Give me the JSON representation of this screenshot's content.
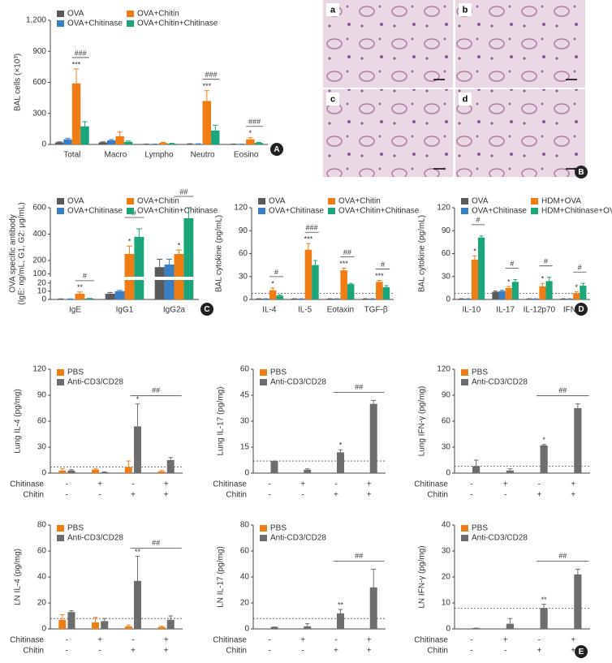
{
  "chart_data": [
    {
      "type": "bar",
      "panel": "A",
      "ylabel": "BAL cells (×10³)",
      "categories": [
        "Total",
        "Macro",
        "Lympho",
        "Neutro",
        "Eosino"
      ],
      "ylim": [
        0,
        1200
      ],
      "yticks": [
        0,
        300,
        600,
        900,
        {
          "value": 1200,
          "label": "1,200"
        }
      ],
      "series": [
        {
          "name": "OVA",
          "color": "#5a5a5a",
          "values": [
            20,
            20,
            3,
            5,
            3
          ],
          "errors": [
            5,
            5,
            1,
            2,
            1
          ]
        },
        {
          "name": "OVA+Chitinase",
          "color": "#3a7fc4",
          "values": [
            50,
            40,
            3,
            5,
            3
          ],
          "errors": [
            10,
            8,
            1,
            2,
            1
          ]
        },
        {
          "name": "OVA+Chitin",
          "color": "#f07d14",
          "values": [
            590,
            80,
            15,
            420,
            50
          ],
          "errors": [
            140,
            40,
            5,
            100,
            15
          ]
        },
        {
          "name": "OVA+Chitin+Chitinase",
          "color": "#1aa57a",
          "values": [
            175,
            25,
            8,
            135,
            15
          ],
          "errors": [
            45,
            8,
            3,
            50,
            5
          ]
        }
      ],
      "annotations": [
        {
          "text": "***",
          "category": 0,
          "series": 2
        },
        {
          "text": "***",
          "category": 3,
          "series": 2
        },
        {
          "text": "*",
          "category": 4,
          "series": 2
        },
        {
          "text": "###",
          "category": 0,
          "from": 2,
          "to": 3
        },
        {
          "text": "###",
          "category": 3,
          "from": 2,
          "to": 3
        },
        {
          "text": "###",
          "category": 4,
          "from": 2,
          "to": 3
        }
      ]
    },
    {
      "type": "bar",
      "panel": "C",
      "ylabel": [
        "OVA specific antibody",
        "(IgE: ng/mL, G1, G2: μg/mL)"
      ],
      "categories": [
        "IgE",
        "IgG1",
        "IgG2a"
      ],
      "ylim": [
        0,
        600
      ],
      "axis_break": [
        20,
        100
      ],
      "yticks": [
        0,
        10,
        20,
        100,
        200,
        400,
        600
      ],
      "series": [
        {
          "name": "OVA",
          "color": "#5a5a5a",
          "values": [
            0.5,
            7,
            150
          ],
          "errors": [
            0.2,
            1.5,
            60
          ]
        },
        {
          "name": "OVA+Chitinase",
          "color": "#3a7fc4",
          "values": [
            0.5,
            10,
            170
          ],
          "errors": [
            0.2,
            1,
            40
          ]
        },
        {
          "name": "OVA+Chitin",
          "color": "#f07d14",
          "values": [
            7,
            250,
            250
          ],
          "errors": [
            2,
            60,
            30
          ]
        },
        {
          "name": "OVA+Chitin+Chitinase",
          "color": "#1aa57a",
          "values": [
            1,
            380,
            520
          ],
          "errors": [
            0.3,
            60,
            80
          ]
        }
      ],
      "annotations": [
        {
          "text": "**",
          "category": 0,
          "series": 2
        },
        {
          "text": "*",
          "category": 1,
          "series": 2
        },
        {
          "text": "*",
          "category": 2,
          "series": 2
        },
        {
          "text": "#",
          "category": 0,
          "from": 2,
          "to": 3
        },
        {
          "text": "#",
          "category": 1,
          "from": 2,
          "to": 3
        },
        {
          "text": "##",
          "category": 2,
          "from": 2,
          "to": 3
        }
      ]
    },
    {
      "type": "bar",
      "ylabel": "BAL cytokine (pg/mL)",
      "categories": [
        "IL-4",
        "IL-5",
        "Eotaxin",
        "TGF-β"
      ],
      "ylim": [
        0,
        120
      ],
      "yticks": [
        0,
        30,
        60,
        90,
        120
      ],
      "reference_line": 8,
      "series": [
        {
          "name": "OVA",
          "color": "#5a5a5a",
          "values": [
            1,
            1,
            1,
            1
          ],
          "errors": [
            0,
            0,
            0,
            0
          ]
        },
        {
          "name": "OVA+Chitinase",
          "color": "#3a7fc4",
          "values": [
            1,
            1,
            1,
            1
          ],
          "errors": [
            0,
            0,
            0,
            0
          ]
        },
        {
          "name": "OVA+Chitin",
          "color": "#f07d14",
          "values": [
            12,
            65,
            38,
            23
          ],
          "errors": [
            3,
            8,
            3,
            2
          ]
        },
        {
          "name": "OVA+Chitin+Chitinase",
          "color": "#1aa57a",
          "values": [
            5,
            45,
            20,
            16
          ],
          "errors": [
            1,
            6,
            1,
            2
          ]
        }
      ],
      "annotations": [
        {
          "text": "*",
          "category": 0,
          "series": 2
        },
        {
          "text": "***",
          "category": 1,
          "series": 2
        },
        {
          "text": "***",
          "category": 2,
          "series": 2
        },
        {
          "text": "***",
          "category": 3,
          "series": 2
        },
        {
          "text": "#",
          "category": 0,
          "from": 2,
          "to": 3
        },
        {
          "text": "###",
          "category": 1,
          "from": 2,
          "to": 3
        },
        {
          "text": "##",
          "category": 2,
          "from": 2,
          "to": 3
        },
        {
          "text": "#",
          "category": 3,
          "from": 2,
          "to": 3
        }
      ]
    },
    {
      "type": "bar",
      "panel": "D",
      "ylabel": "BAL cytokine (pg/mL)",
      "categories": [
        "IL-10",
        "IL-17",
        "IL-12p70",
        "IFN-γ"
      ],
      "ylim": [
        0,
        120
      ],
      "yticks": [
        0,
        30,
        60,
        90,
        120
      ],
      "reference_line": 8,
      "series": [
        {
          "name": "OVA",
          "color": "#5a5a5a",
          "values": [
            1,
            10,
            1,
            1
          ],
          "errors": [
            0,
            1,
            0,
            0
          ]
        },
        {
          "name": "OVA+Chitinase",
          "color": "#3a7fc4",
          "values": [
            1,
            11,
            1,
            1
          ],
          "errors": [
            0,
            1,
            0,
            0
          ]
        },
        {
          "name": "HDM+OVA",
          "color": "#f07d14",
          "values": [
            52,
            15,
            17,
            8
          ],
          "errors": [
            5,
            2,
            4,
            2
          ]
        },
        {
          "name": "HDM+Chitinase+OVA",
          "color": "#1aa57a",
          "values": [
            81,
            23,
            24,
            18
          ],
          "errors": [
            2,
            3,
            5,
            3
          ]
        }
      ],
      "annotations": [
        {
          "text": "*",
          "category": 0,
          "series": 2
        },
        {
          "text": "*",
          "category": 1,
          "series": 2
        },
        {
          "text": "*",
          "category": 2,
          "series": 2
        },
        {
          "text": "*",
          "category": 3,
          "series": 2
        },
        {
          "text": "#",
          "category": 0,
          "from": 2,
          "to": 3
        },
        {
          "text": "#",
          "category": 1,
          "from": 2,
          "to": 3
        },
        {
          "text": "#",
          "category": 2,
          "from": 2,
          "to": 3
        },
        {
          "text": "#",
          "category": 3,
          "from": 2,
          "to": 3
        }
      ]
    },
    {
      "type": "bar",
      "ylabel": "Lung IL-4 (pg/mg)",
      "ylim": [
        0,
        120
      ],
      "yticks": [
        0,
        30,
        60,
        90,
        120
      ],
      "reference_line": 7,
      "xrows": [
        {
          "name": "Chitinase",
          "values": [
            "-",
            "+",
            "-",
            "+"
          ]
        },
        {
          "name": "Chitin",
          "values": [
            "-",
            "-",
            "+",
            "+"
          ]
        }
      ],
      "series": [
        {
          "name": "PBS",
          "color": "#f07d14",
          "values": [
            3,
            4,
            7,
            2
          ],
          "errors": [
            2,
            1,
            7,
            1
          ]
        },
        {
          "name": "Anti-CD3/CD28",
          "color": "#6d6d6d",
          "values": [
            3,
            1,
            54,
            15
          ],
          "errors": [
            1,
            0.5,
            26,
            3
          ]
        }
      ],
      "annotations": [
        {
          "text": "*",
          "category": 2,
          "series": 1
        },
        {
          "text": "##",
          "from": 2,
          "to": 3
        }
      ]
    },
    {
      "type": "bar",
      "ylabel": "Lung IL-17 (pg/mg)",
      "ylim": [
        0,
        60
      ],
      "yticks": [
        0,
        15,
        30,
        45,
        60
      ],
      "reference_line": 7,
      "xrows": [
        {
          "name": "Chitinase",
          "values": [
            "-",
            "+",
            "-",
            "+"
          ]
        },
        {
          "name": "Chitin",
          "values": [
            "-",
            "-",
            "+",
            "+"
          ]
        }
      ],
      "series": [
        {
          "name": "PBS",
          "color": "#f07d14",
          "values": [
            null,
            null,
            null,
            null
          ],
          "errors": [
            null,
            null,
            null,
            null
          ]
        },
        {
          "name": "Anti-CD3/CD28",
          "color": "#6d6d6d",
          "values": [
            7,
            2,
            12,
            40
          ],
          "errors": [
            0,
            0.5,
            1.5,
            2
          ]
        }
      ],
      "annotations": [
        {
          "text": "*",
          "category": 2,
          "series": 1
        },
        {
          "text": "##",
          "from": 2,
          "to": 3
        }
      ]
    },
    {
      "type": "bar",
      "ylabel": "Lung IFN-γ (pg/mg)",
      "ylim": [
        0,
        120
      ],
      "yticks": [
        0,
        30,
        60,
        90,
        120
      ],
      "reference_line": 8,
      "xrows": [
        {
          "name": "Chitinase",
          "values": [
            "-",
            "+",
            "-",
            "+"
          ]
        },
        {
          "name": "Chitin",
          "values": [
            "-",
            "-",
            "+",
            "+"
          ]
        }
      ],
      "series": [
        {
          "name": "PBS",
          "color": "#f07d14",
          "values": [
            null,
            null,
            null,
            null
          ],
          "errors": [
            null,
            null,
            null,
            null
          ]
        },
        {
          "name": "Anti-CD3/CD28",
          "color": "#6d6d6d",
          "values": [
            8,
            3,
            32,
            75
          ],
          "errors": [
            7,
            2,
            1,
            5
          ]
        }
      ],
      "annotations": [
        {
          "text": "*",
          "category": 2,
          "series": 1
        },
        {
          "text": "##",
          "from": 2,
          "to": 3
        }
      ]
    },
    {
      "type": "bar",
      "ylabel": "LN IL-4 (pg/mg)",
      "ylim": [
        0,
        80
      ],
      "yticks": [
        0,
        20,
        40,
        60,
        80
      ],
      "reference_line": 8,
      "xrows": [
        {
          "name": "Chitinase",
          "values": [
            "-",
            "+",
            "-",
            "+"
          ]
        },
        {
          "name": "Chitin",
          "values": [
            "-",
            "-",
            "+",
            "+"
          ]
        }
      ],
      "series": [
        {
          "name": "PBS",
          "color": "#f07d14",
          "values": [
            7,
            5,
            2,
            1.5
          ],
          "errors": [
            4,
            4,
            1,
            0.5
          ]
        },
        {
          "name": "Anti-CD3/CD28",
          "color": "#6d6d6d",
          "values": [
            13,
            6,
            37,
            7
          ],
          "errors": [
            1,
            2,
            19,
            3
          ]
        }
      ],
      "annotations": [
        {
          "text": "**",
          "category": 2,
          "series": 1
        },
        {
          "text": "##",
          "from": 2,
          "to": 3
        }
      ]
    },
    {
      "type": "bar",
      "ylabel": "LN IL-17 (pg/mg)",
      "ylim": [
        0,
        80
      ],
      "yticks": [
        0,
        20,
        40,
        60,
        80
      ],
      "reference_line": 8,
      "xrows": [
        {
          "name": "Chitinase",
          "values": [
            "-",
            "+",
            "-",
            "+"
          ]
        },
        {
          "name": "Chitin",
          "values": [
            "-",
            "-",
            "+",
            "+"
          ]
        }
      ],
      "series": [
        {
          "name": "PBS",
          "color": "#f07d14",
          "values": [
            null,
            null,
            null,
            null
          ],
          "errors": [
            null,
            null,
            null,
            null
          ]
        },
        {
          "name": "Anti-CD3/CD28",
          "color": "#6d6d6d",
          "values": [
            1.5,
            2,
            12,
            32
          ],
          "errors": [
            0,
            2,
            3,
            14
          ]
        }
      ],
      "annotations": [
        {
          "text": "**",
          "category": 2,
          "series": 1
        },
        {
          "text": "##",
          "from": 2,
          "to": 3
        }
      ]
    },
    {
      "type": "bar",
      "panel": "E",
      "ylabel": "LN IFN-γ (pg/mg)",
      "ylim": [
        0,
        40
      ],
      "yticks": [
        0,
        10,
        20,
        30,
        40
      ],
      "reference_line": 8,
      "xrows": [
        {
          "name": "Chitinase",
          "values": [
            "-",
            "+",
            "-",
            "+"
          ]
        },
        {
          "name": "Chitin",
          "values": [
            "-",
            "-",
            "+",
            "+"
          ]
        }
      ],
      "series": [
        {
          "name": "PBS",
          "color": "#f07d14",
          "values": [
            null,
            null,
            null,
            null
          ],
          "errors": [
            null,
            null,
            null,
            null
          ]
        },
        {
          "name": "Anti-CD3/CD28",
          "color": "#6d6d6d",
          "values": [
            0.3,
            2,
            8,
            21
          ],
          "errors": [
            0,
            2,
            1.5,
            2
          ]
        }
      ],
      "annotations": [
        {
          "text": "**",
          "category": 2,
          "series": 1
        },
        {
          "text": "##",
          "from": 2,
          "to": 3
        }
      ]
    }
  ],
  "micrographs": {
    "panel": "B",
    "labels": [
      "a",
      "b",
      "c",
      "d"
    ]
  }
}
